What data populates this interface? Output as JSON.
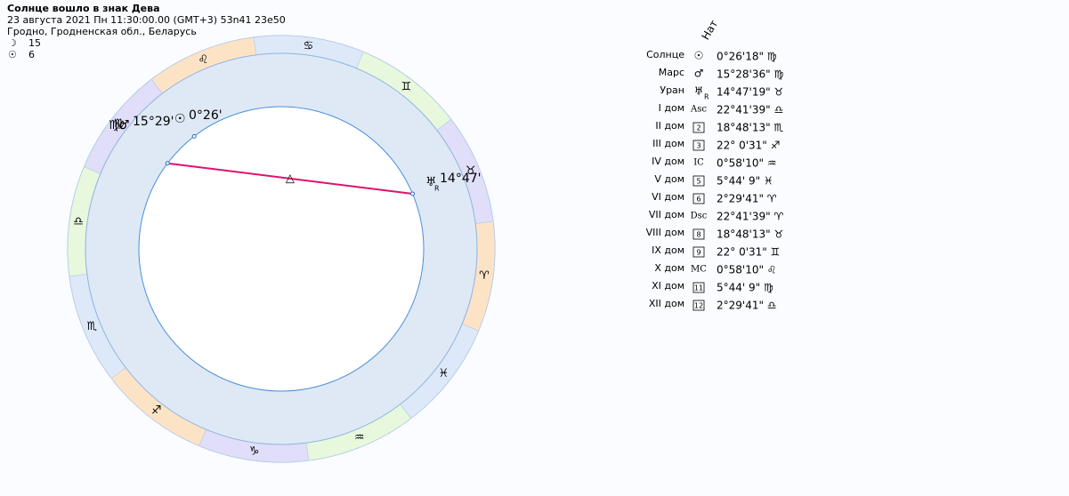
{
  "header": {
    "title": "Солнце вошло в знак Дева",
    "date_line": "23 августа 2021  Пн  11:30:00.00 (GMT+3) 53n41  23e50",
    "place": "Гродно, Гродненская обл., Беларусь",
    "moon": {
      "symbol": "☽",
      "value": "15"
    },
    "sun": {
      "symbol": "☉",
      "value": "6"
    }
  },
  "wheel": {
    "signs": [
      "♈",
      "♉",
      "♊",
      "♋",
      "♌",
      "♍",
      "♎",
      "♏",
      "♐",
      "♑",
      "♒",
      "♓"
    ],
    "planets": [
      {
        "sign": "♍",
        "symbol": "♂",
        "label": "15°29'"
      },
      {
        "symbol": "☉",
        "label": "0°26'"
      },
      {
        "symbol": "♅",
        "label": "14°47'",
        "retro": "R"
      }
    ],
    "aspect": "△"
  },
  "table": {
    "column": "Нат",
    "rows": [
      {
        "name": "Солнце",
        "symbol": "☉",
        "value": "0°26'18\" ♍"
      },
      {
        "name": "Марс",
        "symbol": "♂",
        "value": "15°28'36\" ♍"
      },
      {
        "name": "Уран",
        "symbol": "♅",
        "retro": "R",
        "value": "14°47'19\" ♉"
      },
      {
        "name": "I дом",
        "symbol": "Asc",
        "value": "22°41'39\" ♎"
      },
      {
        "name": "II дом",
        "symbol": "2",
        "value": "18°48'13\" ♏"
      },
      {
        "name": "III дом",
        "symbol": "3",
        "value": "22° 0'31\" ♐"
      },
      {
        "name": "IV дом",
        "symbol": "IC",
        "value": "0°58'10\" ♒"
      },
      {
        "name": "V дом",
        "symbol": "5",
        "value": "5°44' 9\" ♓"
      },
      {
        "name": "VI дом",
        "symbol": "6",
        "value": "2°29'41\" ♈"
      },
      {
        "name": "VII дом",
        "symbol": "Dsc",
        "value": "22°41'39\" ♈"
      },
      {
        "name": "VIII дом",
        "symbol": "8",
        "value": "18°48'13\" ♉"
      },
      {
        "name": "IX дом",
        "symbol": "9",
        "value": "22° 0'31\" ♊"
      },
      {
        "name": "X дом",
        "symbol": "MC",
        "value": "0°58'10\" ♌"
      },
      {
        "name": "XI дом",
        "symbol": "11",
        "value": "5°44' 9\" ♍"
      },
      {
        "name": "XII дом",
        "symbol": "12",
        "value": "2°29'41\" ♎"
      }
    ]
  }
}
